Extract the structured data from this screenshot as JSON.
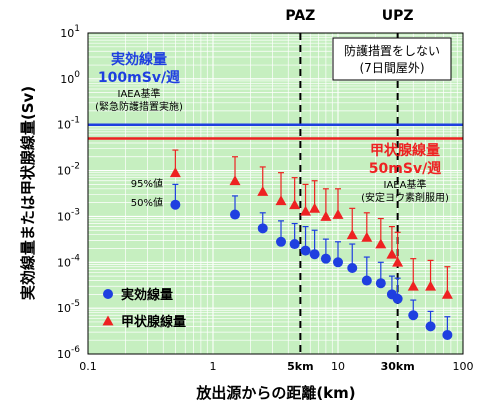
{
  "chart_data": {
    "type": "scatter",
    "xscale": "log",
    "yscale": "log",
    "xlim": [
      0.1,
      100
    ],
    "ylim": [
      1e-06,
      10
    ],
    "xlabel": "放出源からの距離(km)",
    "ylabel": "実効線量または甲状腺線量(Sv)",
    "x_tick_labels": [
      {
        "x": 0.1,
        "label": "0.1"
      },
      {
        "x": 1,
        "label": "1"
      },
      {
        "x": 5,
        "label": "5km"
      },
      {
        "x": 10,
        "label": "10"
      },
      {
        "x": 30,
        "label": "30km"
      },
      {
        "x": 100,
        "label": "100"
      }
    ],
    "y_ticks": [
      {
        "y": 10,
        "base": "10",
        "exp": "1"
      },
      {
        "y": 1,
        "base": "10",
        "exp": "0"
      },
      {
        "y": 0.1,
        "base": "10",
        "exp": "-1"
      },
      {
        "y": 0.01,
        "base": "10",
        "exp": "-2"
      },
      {
        "y": 0.001,
        "base": "10",
        "exp": "-3"
      },
      {
        "y": 0.0001,
        "base": "10",
        "exp": "-4"
      },
      {
        "y": 1e-05,
        "base": "10",
        "exp": "-5"
      },
      {
        "y": 1e-06,
        "base": "10",
        "exp": "-6"
      }
    ],
    "zone_lines": [
      {
        "x": 5,
        "label": "PAZ"
      },
      {
        "x": 30,
        "label": "UPZ"
      }
    ],
    "reference_lines": [
      {
        "y": 0.1,
        "color": "#1f3fe0",
        "label_lines": [
          "実効線量",
          "100mSv/週"
        ],
        "note_lines": [
          "IAEA基準",
          "(緊急防護措置実施)"
        ]
      },
      {
        "y": 0.05,
        "color": "#ee2222",
        "label_lines": [
          "甲状腺線量",
          "50mSv/週"
        ],
        "note_lines": [
          "IAEA基準",
          "(安定ヨウ素剤服用)"
        ]
      }
    ],
    "note_box_lines": [
      "防護措置をしない",
      "(7日間屋外)"
    ],
    "point_labels": {
      "p95": "95%値",
      "p50": "50%値"
    },
    "series": [
      {
        "name": "実効線量",
        "color": "#1f3fe0",
        "marker": "circle",
        "x": [
          0.5,
          1.5,
          2.5,
          3.5,
          4.5,
          5.5,
          6.5,
          8,
          10,
          13,
          17,
          22,
          27,
          30,
          40,
          55,
          75
        ],
        "y": [
          0.0018,
          0.0011,
          0.00055,
          0.00028,
          0.00025,
          0.00018,
          0.00015,
          0.00012,
          0.0001,
          7.5e-05,
          4e-05,
          3.5e-05,
          2e-05,
          1.6e-05,
          7e-06,
          4e-06,
          2.6e-06
        ],
        "y95": [
          0.005,
          0.0028,
          0.0012,
          0.0008,
          0.0007,
          0.0006,
          0.0005,
          0.00032,
          0.00028,
          0.00025,
          0.00013,
          0.0001,
          5e-05,
          4.5e-05,
          1.5e-05,
          8.5e-06,
          6.5e-06
        ]
      },
      {
        "name": "甲状腺線量",
        "color": "#ee2222",
        "marker": "triangle",
        "x": [
          0.5,
          1.5,
          2.5,
          3.5,
          4.5,
          5.5,
          6.5,
          8,
          10,
          13,
          17,
          22,
          27,
          30,
          40,
          55,
          75
        ],
        "y": [
          0.009,
          0.006,
          0.0035,
          0.0022,
          0.0018,
          0.0013,
          0.0015,
          0.001,
          0.0011,
          0.0004,
          0.00035,
          0.00025,
          0.00015,
          0.0001,
          3e-05,
          3e-05,
          2e-05
        ],
        "y95": [
          0.028,
          0.02,
          0.012,
          0.009,
          0.007,
          0.005,
          0.006,
          0.004,
          0.004,
          0.0015,
          0.0012,
          0.0009,
          0.0006,
          0.00045,
          0.00012,
          0.00011,
          8e-05
        ]
      }
    ]
  },
  "colors": {
    "plot_bg": "#c6efc0",
    "grid": "#ffffff",
    "blue": "#1f3fe0",
    "red": "#ee2222"
  }
}
